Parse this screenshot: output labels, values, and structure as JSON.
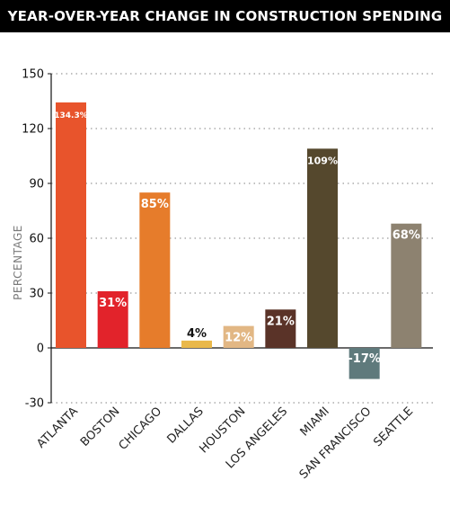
{
  "chart_data": {
    "type": "bar",
    "title": "YEAR-OVER-YEAR CHANGE IN CONSTRUCTION SPENDING",
    "ylabel": "PERCENTAGE",
    "xlabel": "",
    "ylim": [
      -30,
      150
    ],
    "yticks": [
      "150",
      "120",
      "90",
      "60",
      "30",
      "0",
      "-30"
    ],
    "grid": "dotted horizontal",
    "categories": [
      "ATLANTA",
      "BOSTON",
      "CHICAGO",
      "DALLAS",
      "HOUSTON",
      "LOS ANGELES",
      "MIAMI",
      "SAN FRANCISCO",
      "SEATTLE"
    ],
    "values": [
      134.3,
      31,
      85,
      4,
      12,
      21,
      109,
      -17,
      68
    ],
    "labels": [
      "134.3%",
      "31%",
      "85%",
      "4%",
      "12%",
      "21%",
      "109%",
      "-17%",
      "68%"
    ],
    "colors": [
      "#e8542c",
      "#e2232b",
      "#e67c2b",
      "#e9b84a",
      "#e2b784",
      "#5a3328",
      "#55482d",
      "#5f7a7c",
      "#8d8270"
    ],
    "label_colors": [
      "#ffffff",
      "#ffffff",
      "#ffffff",
      "#111111",
      "#ffffff",
      "#ffffff",
      "#ffffff",
      "#ffffff",
      "#ffffff"
    ]
  }
}
